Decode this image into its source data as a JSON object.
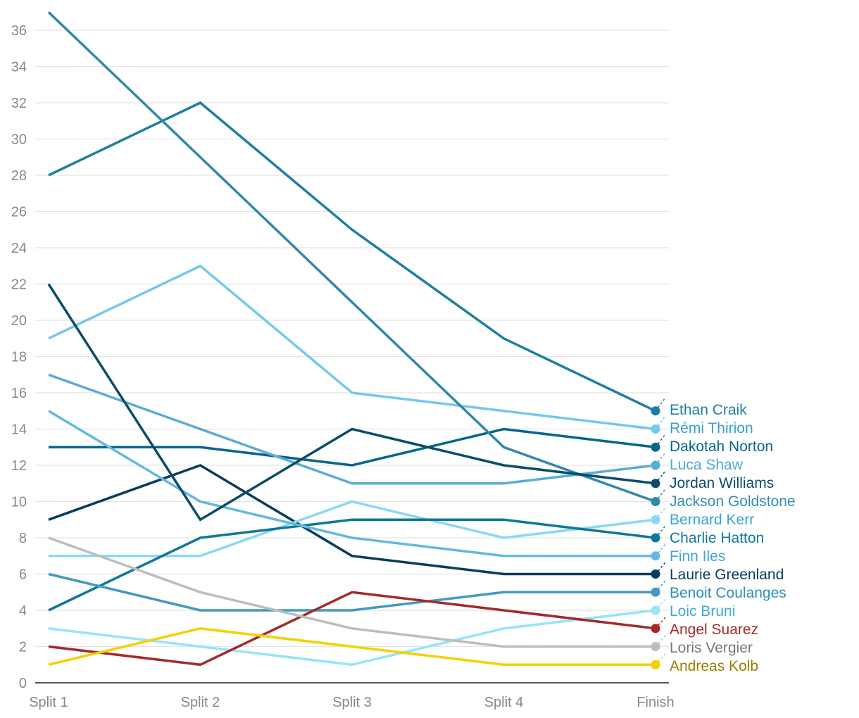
{
  "chart_data": {
    "type": "line",
    "title": "",
    "xlabel": "",
    "ylabel": "",
    "categories": [
      "Split 1",
      "Split 2",
      "Split 3",
      "Split 4",
      "Finish"
    ],
    "ylim": [
      0,
      37
    ],
    "yticks": [
      0,
      2,
      4,
      6,
      8,
      10,
      12,
      14,
      16,
      18,
      20,
      22,
      24,
      26,
      28,
      30,
      32,
      34,
      36
    ],
    "grid": true,
    "legend": "direct labels at right end of lines",
    "series": [
      {
        "name": "Ethan Craik",
        "color": "#1f7fa0",
        "values": [
          28,
          32,
          25,
          19,
          15
        ]
      },
      {
        "name": "Rémi Thirion",
        "color": "#74c8ea",
        "values": [
          19,
          23,
          16,
          15,
          14
        ]
      },
      {
        "name": "Dakotah Norton",
        "color": "#06668a",
        "values": [
          13,
          13,
          12,
          14,
          13
        ]
      },
      {
        "name": "Luca Shaw",
        "color": "#5aacd4",
        "values": [
          17,
          14,
          11,
          11,
          12
        ]
      },
      {
        "name": "Laurie Greenland",
        "color": "#083d5a",
        "values": [
          9,
          12,
          7,
          6,
          6
        ]
      },
      {
        "name": "Jackson Goldstone",
        "color": "#3388aa",
        "values": [
          37,
          29,
          21,
          13,
          10
        ]
      },
      {
        "name": "Bernard Kerr",
        "color": "#8ad8f5",
        "values": [
          7,
          7,
          10,
          8,
          9
        ]
      },
      {
        "name": "Charlie Hatton",
        "color": "#0f7896",
        "values": [
          4,
          8,
          9,
          9,
          8
        ]
      },
      {
        "name": "Finn Iles",
        "color": "#66b8de",
        "values": [
          15,
          10,
          8,
          7,
          7
        ]
      },
      {
        "name": "Jordan Williams",
        "color": "#0a4d6a",
        "values": [
          22,
          9,
          14,
          12,
          11
        ]
      },
      {
        "name": "Benoit Coulanges",
        "color": "#4499c0",
        "values": [
          6,
          4,
          4,
          5,
          5
        ]
      },
      {
        "name": "Loic Bruni",
        "color": "#96e4f8",
        "values": [
          3,
          2,
          1,
          3,
          4
        ]
      },
      {
        "name": "Angel Suarez",
        "color": "#a32a2a",
        "values": [
          2,
          1,
          5,
          4,
          3
        ]
      },
      {
        "name": "Loris Vergier",
        "color": "#bdbdbd",
        "values": [
          8,
          5,
          3,
          2,
          2
        ]
      },
      {
        "name": "Andreas Kolb",
        "color": "#f5d000",
        "values": [
          1,
          3,
          2,
          1,
          1
        ]
      }
    ],
    "end_labels": [
      {
        "name": "Ethan Craik",
        "color": "#1f7fa0"
      },
      {
        "name": "Rémi Thirion",
        "color": "#3b9fc8"
      },
      {
        "name": "Dakotah Norton",
        "color": "#06668a"
      },
      {
        "name": "Luca Shaw",
        "color": "#4ea8d2"
      },
      {
        "name": "Laurie Greenland",
        "color": "#083d5a"
      },
      {
        "name": "Jackson Goldstone",
        "color": "#2f8db4"
      },
      {
        "name": "Bernard Kerr",
        "color": "#3ba4d4"
      },
      {
        "name": "Charlie Hatton",
        "color": "#0f7896"
      },
      {
        "name": "Finn Iles",
        "color": "#3fa5d4"
      },
      {
        "name": "Jordan Williams",
        "color": "#0a4d6a"
      },
      {
        "name": "Benoit Coulanges",
        "color": "#2e8fbb"
      },
      {
        "name": "Loic Bruni",
        "color": "#3aaad8"
      },
      {
        "name": "Angel Suarez",
        "color": "#a32a2a"
      },
      {
        "name": "Loris Vergier",
        "color": "#777777"
      },
      {
        "name": "Andreas Kolb",
        "color": "#9b7f00"
      }
    ]
  }
}
